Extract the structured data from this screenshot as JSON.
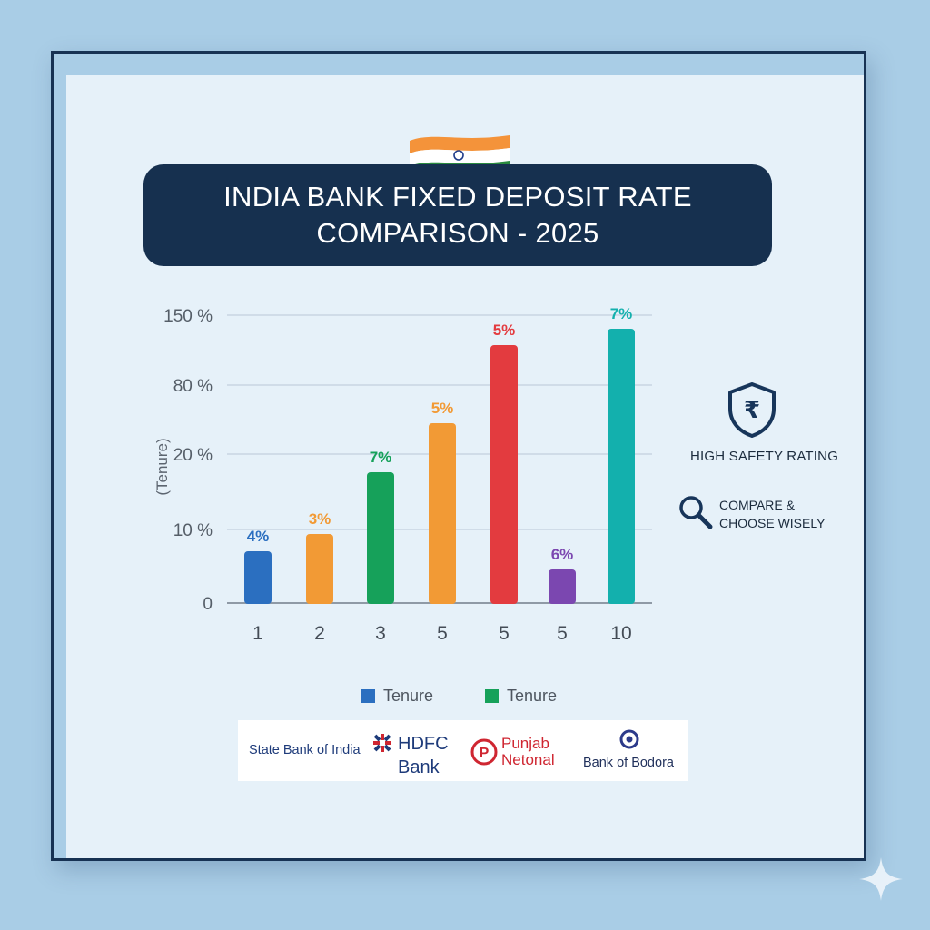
{
  "title": {
    "line1": "INDIA BANK FIXED DEPOSIT RATE",
    "line2": "COMPARISON - 2025"
  },
  "chart_data": {
    "type": "bar",
    "categories": [
      "1",
      "2",
      "3",
      "5",
      "5",
      "5",
      "10"
    ],
    "values": [
      4,
      3,
      7,
      5,
      5,
      6,
      7
    ],
    "data_labels": [
      "4%",
      "3%",
      "7%",
      "5%",
      "5%",
      "6%",
      "7%"
    ],
    "bar_colors": [
      "#2b6fc0",
      "#f29a35",
      "#16a15a",
      "#f29a35",
      "#e33b3f",
      "#7b47b0",
      "#13b0ad"
    ],
    "ylabel": "(Tenure)",
    "y_ticks": [
      "150 %",
      "80 %",
      "20 %",
      "10 %",
      "0"
    ],
    "grid": true,
    "legend": [
      {
        "label": "Tenure",
        "color": "#2b6fc0"
      },
      {
        "label": "Tenure",
        "color": "#16a15a"
      }
    ]
  },
  "side_panel": {
    "safety_icon": "rupee-shield-icon",
    "safety_text": "HIGH SAFETY RATING",
    "compare_icon": "magnifier-icon",
    "compare_line1": "COMPARE &",
    "compare_line2": "CHOOSE WISELY"
  },
  "banks": {
    "sbi": "State Bank of India",
    "hdfc_line1": "HDFC",
    "hdfc_line2": "Bank",
    "pnb_line1": "Punjab",
    "pnb_line2": "Netonal",
    "bob": "Bank of Bodora"
  },
  "colors": {
    "background": "#a9cde6",
    "panel": "#e6f1f9",
    "banner": "#16304f",
    "brand_red": "#cf2631",
    "brand_blue": "#1e3b7a"
  }
}
